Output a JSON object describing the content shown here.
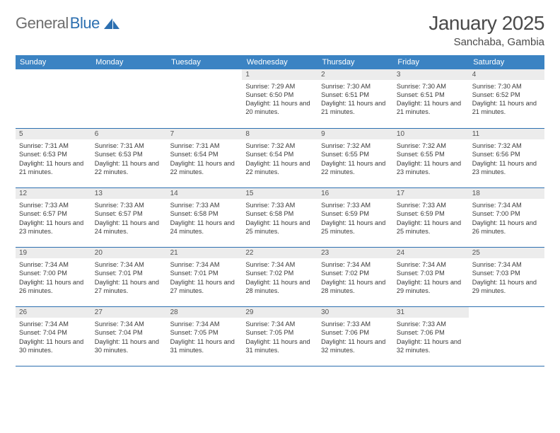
{
  "logo": {
    "gray": "General",
    "blue": "Blue"
  },
  "title": "January 2025",
  "location": "Sanchaba, Gambia",
  "colors": {
    "header_bg": "#3b83c3",
    "row_border": "#2c6fb0",
    "date_bg": "#ececec",
    "logo_gray": "#6e6e6e",
    "logo_blue": "#2c6fb0",
    "title_text": "#4a4a4a"
  },
  "day_headers": [
    "Sunday",
    "Monday",
    "Tuesday",
    "Wednesday",
    "Thursday",
    "Friday",
    "Saturday"
  ],
  "weeks": [
    [
      {
        "date": "",
        "lines": []
      },
      {
        "date": "",
        "lines": []
      },
      {
        "date": "",
        "lines": []
      },
      {
        "date": "1",
        "lines": [
          "Sunrise: 7:29 AM",
          "Sunset: 6:50 PM",
          "Daylight: 11 hours and 20 minutes."
        ]
      },
      {
        "date": "2",
        "lines": [
          "Sunrise: 7:30 AM",
          "Sunset: 6:51 PM",
          "Daylight: 11 hours and 21 minutes."
        ]
      },
      {
        "date": "3",
        "lines": [
          "Sunrise: 7:30 AM",
          "Sunset: 6:51 PM",
          "Daylight: 11 hours and 21 minutes."
        ]
      },
      {
        "date": "4",
        "lines": [
          "Sunrise: 7:30 AM",
          "Sunset: 6:52 PM",
          "Daylight: 11 hours and 21 minutes."
        ]
      }
    ],
    [
      {
        "date": "5",
        "lines": [
          "Sunrise: 7:31 AM",
          "Sunset: 6:53 PM",
          "Daylight: 11 hours and 21 minutes."
        ]
      },
      {
        "date": "6",
        "lines": [
          "Sunrise: 7:31 AM",
          "Sunset: 6:53 PM",
          "Daylight: 11 hours and 22 minutes."
        ]
      },
      {
        "date": "7",
        "lines": [
          "Sunrise: 7:31 AM",
          "Sunset: 6:54 PM",
          "Daylight: 11 hours and 22 minutes."
        ]
      },
      {
        "date": "8",
        "lines": [
          "Sunrise: 7:32 AM",
          "Sunset: 6:54 PM",
          "Daylight: 11 hours and 22 minutes."
        ]
      },
      {
        "date": "9",
        "lines": [
          "Sunrise: 7:32 AM",
          "Sunset: 6:55 PM",
          "Daylight: 11 hours and 22 minutes."
        ]
      },
      {
        "date": "10",
        "lines": [
          "Sunrise: 7:32 AM",
          "Sunset: 6:55 PM",
          "Daylight: 11 hours and 23 minutes."
        ]
      },
      {
        "date": "11",
        "lines": [
          "Sunrise: 7:32 AM",
          "Sunset: 6:56 PM",
          "Daylight: 11 hours and 23 minutes."
        ]
      }
    ],
    [
      {
        "date": "12",
        "lines": [
          "Sunrise: 7:33 AM",
          "Sunset: 6:57 PM",
          "Daylight: 11 hours and 23 minutes."
        ]
      },
      {
        "date": "13",
        "lines": [
          "Sunrise: 7:33 AM",
          "Sunset: 6:57 PM",
          "Daylight: 11 hours and 24 minutes."
        ]
      },
      {
        "date": "14",
        "lines": [
          "Sunrise: 7:33 AM",
          "Sunset: 6:58 PM",
          "Daylight: 11 hours and 24 minutes."
        ]
      },
      {
        "date": "15",
        "lines": [
          "Sunrise: 7:33 AM",
          "Sunset: 6:58 PM",
          "Daylight: 11 hours and 25 minutes."
        ]
      },
      {
        "date": "16",
        "lines": [
          "Sunrise: 7:33 AM",
          "Sunset: 6:59 PM",
          "Daylight: 11 hours and 25 minutes."
        ]
      },
      {
        "date": "17",
        "lines": [
          "Sunrise: 7:33 AM",
          "Sunset: 6:59 PM",
          "Daylight: 11 hours and 25 minutes."
        ]
      },
      {
        "date": "18",
        "lines": [
          "Sunrise: 7:34 AM",
          "Sunset: 7:00 PM",
          "Daylight: 11 hours and 26 minutes."
        ]
      }
    ],
    [
      {
        "date": "19",
        "lines": [
          "Sunrise: 7:34 AM",
          "Sunset: 7:00 PM",
          "Daylight: 11 hours and 26 minutes."
        ]
      },
      {
        "date": "20",
        "lines": [
          "Sunrise: 7:34 AM",
          "Sunset: 7:01 PM",
          "Daylight: 11 hours and 27 minutes."
        ]
      },
      {
        "date": "21",
        "lines": [
          "Sunrise: 7:34 AM",
          "Sunset: 7:01 PM",
          "Daylight: 11 hours and 27 minutes."
        ]
      },
      {
        "date": "22",
        "lines": [
          "Sunrise: 7:34 AM",
          "Sunset: 7:02 PM",
          "Daylight: 11 hours and 28 minutes."
        ]
      },
      {
        "date": "23",
        "lines": [
          "Sunrise: 7:34 AM",
          "Sunset: 7:02 PM",
          "Daylight: 11 hours and 28 minutes."
        ]
      },
      {
        "date": "24",
        "lines": [
          "Sunrise: 7:34 AM",
          "Sunset: 7:03 PM",
          "Daylight: 11 hours and 29 minutes."
        ]
      },
      {
        "date": "25",
        "lines": [
          "Sunrise: 7:34 AM",
          "Sunset: 7:03 PM",
          "Daylight: 11 hours and 29 minutes."
        ]
      }
    ],
    [
      {
        "date": "26",
        "lines": [
          "Sunrise: 7:34 AM",
          "Sunset: 7:04 PM",
          "Daylight: 11 hours and 30 minutes."
        ]
      },
      {
        "date": "27",
        "lines": [
          "Sunrise: 7:34 AM",
          "Sunset: 7:04 PM",
          "Daylight: 11 hours and 30 minutes."
        ]
      },
      {
        "date": "28",
        "lines": [
          "Sunrise: 7:34 AM",
          "Sunset: 7:05 PM",
          "Daylight: 11 hours and 31 minutes."
        ]
      },
      {
        "date": "29",
        "lines": [
          "Sunrise: 7:34 AM",
          "Sunset: 7:05 PM",
          "Daylight: 11 hours and 31 minutes."
        ]
      },
      {
        "date": "30",
        "lines": [
          "Sunrise: 7:33 AM",
          "Sunset: 7:06 PM",
          "Daylight: 11 hours and 32 minutes."
        ]
      },
      {
        "date": "31",
        "lines": [
          "Sunrise: 7:33 AM",
          "Sunset: 7:06 PM",
          "Daylight: 11 hours and 32 minutes."
        ]
      },
      {
        "date": "",
        "lines": []
      }
    ]
  ]
}
